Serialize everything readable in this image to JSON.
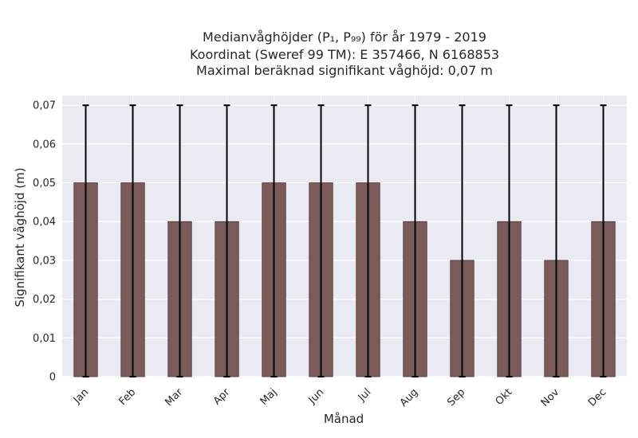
{
  "chart_data": {
    "type": "bar",
    "title_lines": [
      "Medianvåghöjder (P₁, P₉₉) för år 1979 - 2019",
      "Koordinat (Sweref 99 TM): E 357466, N 6168853",
      "Maximal beräknad signifikant våghöjd: 0,07 m"
    ],
    "xlabel": "Månad",
    "ylabel": "Signifikant våghöjd (m)",
    "categories": [
      "Jan",
      "Feb",
      "Mar",
      "Apr",
      "Maj",
      "Jun",
      "Jul",
      "Aug",
      "Sep",
      "Okt",
      "Nov",
      "Dec"
    ],
    "values": [
      0.05,
      0.05,
      0.04,
      0.04,
      0.05,
      0.05,
      0.05,
      0.04,
      0.03,
      0.04,
      0.03,
      0.04
    ],
    "error_low": [
      0,
      0,
      0,
      0,
      0,
      0,
      0,
      0,
      0,
      0,
      0,
      0
    ],
    "error_high": [
      0.07,
      0.07,
      0.07,
      0.07,
      0.07,
      0.07,
      0.07,
      0.07,
      0.07,
      0.07,
      0.07,
      0.07
    ],
    "ylim": [
      0,
      0.0725
    ],
    "yticks": [
      0,
      0.01,
      0.02,
      0.03,
      0.04,
      0.05,
      0.06,
      0.07
    ],
    "ytick_labels": [
      "0",
      "0,01",
      "0,02",
      "0,03",
      "0,04",
      "0,05",
      "0,06",
      "0,07"
    ],
    "grid": true,
    "colors": {
      "bar": "#7b5a5a",
      "bar_edge": "#4a3535",
      "plot_background": "#eaeaf2",
      "error_bar": "#000000"
    }
  }
}
